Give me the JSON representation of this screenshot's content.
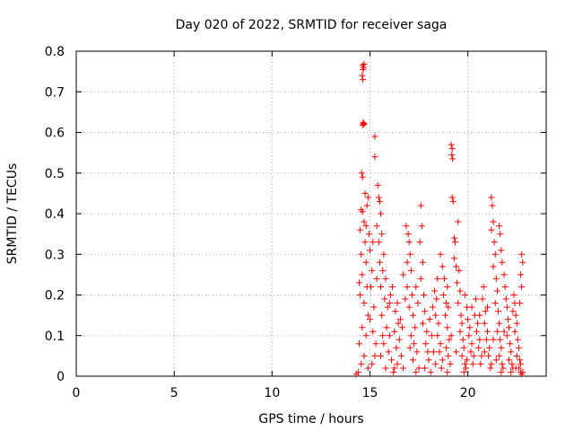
{
  "chart_data": {
    "type": "scatter",
    "title": "Day 020 of 2022, SRMTID for receiver saga",
    "xlabel": "GPS time / hours",
    "ylabel": "SRMTID / TECUs",
    "xlim": [
      0,
      24
    ],
    "ylim": [
      0,
      0.8
    ],
    "grid": true,
    "marker": "+",
    "marker_color": "#ff0000",
    "x_ticks": [
      0,
      5,
      10,
      15,
      20
    ],
    "x_tick_labels": [
      "0",
      "5",
      "10",
      "15",
      "20"
    ],
    "y_ticks": [
      0,
      0.1,
      0.2,
      0.3,
      0.4,
      0.5,
      0.6,
      0.7,
      0.8
    ],
    "y_tick_labels": [
      "0",
      "0.1",
      "0.2",
      "0.3",
      "0.4",
      "0.5",
      "0.6",
      "0.7",
      "0.8"
    ],
    "series": [
      {
        "name": "SRMTID",
        "points": [
          [
            14.62,
            0.765
          ],
          [
            14.65,
            0.755
          ],
          [
            14.6,
            0.74
          ],
          [
            14.64,
            0.73
          ],
          [
            14.68,
            0.76
          ],
          [
            14.7,
            0.768
          ],
          [
            14.65,
            0.625
          ],
          [
            14.7,
            0.62
          ],
          [
            14.62,
            0.618
          ],
          [
            14.68,
            0.622
          ],
          [
            15.25,
            0.59
          ],
          [
            15.25,
            0.54
          ],
          [
            19.15,
            0.57
          ],
          [
            19.2,
            0.56
          ],
          [
            19.18,
            0.545
          ],
          [
            19.22,
            0.535
          ],
          [
            14.58,
            0.5
          ],
          [
            14.62,
            0.49
          ],
          [
            14.55,
            0.41
          ],
          [
            14.62,
            0.405
          ],
          [
            14.7,
            0.38
          ],
          [
            14.8,
            0.37
          ],
          [
            14.5,
            0.36
          ],
          [
            14.75,
            0.33
          ],
          [
            14.55,
            0.3
          ],
          [
            14.8,
            0.28
          ],
          [
            14.6,
            0.25
          ],
          [
            14.45,
            0.23
          ],
          [
            14.85,
            0.22
          ],
          [
            14.5,
            0.2
          ],
          [
            14.7,
            0.18
          ],
          [
            14.9,
            0.15
          ],
          [
            14.6,
            0.12
          ],
          [
            14.8,
            0.1
          ],
          [
            14.45,
            0.08
          ],
          [
            14.7,
            0.05
          ],
          [
            14.55,
            0.03
          ],
          [
            14.9,
            0.02
          ],
          [
            14.4,
            0.01
          ],
          [
            14.3,
            0.005
          ],
          [
            14.75,
            0.45
          ],
          [
            14.9,
            0.44
          ],
          [
            14.85,
            0.42
          ],
          [
            15.0,
            0.31
          ],
          [
            15.1,
            0.26
          ],
          [
            15.05,
            0.22
          ],
          [
            15.2,
            0.17
          ],
          [
            15.0,
            0.14
          ],
          [
            15.15,
            0.11
          ],
          [
            15.3,
            0.08
          ],
          [
            15.25,
            0.05
          ],
          [
            15.1,
            0.03
          ],
          [
            15.4,
            0.47
          ],
          [
            15.45,
            0.44
          ],
          [
            15.5,
            0.43
          ],
          [
            15.55,
            0.4
          ],
          [
            15.35,
            0.37
          ],
          [
            15.6,
            0.35
          ],
          [
            15.45,
            0.33
          ],
          [
            15.7,
            0.3
          ],
          [
            15.5,
            0.28
          ],
          [
            15.65,
            0.26
          ],
          [
            15.8,
            0.24
          ],
          [
            15.55,
            0.22
          ],
          [
            15.75,
            0.19
          ],
          [
            15.9,
            0.17
          ],
          [
            15.6,
            0.15
          ],
          [
            15.85,
            0.12
          ],
          [
            16.0,
            0.1
          ],
          [
            15.7,
            0.08
          ],
          [
            15.95,
            0.06
          ],
          [
            16.1,
            0.04
          ],
          [
            15.8,
            0.02
          ],
          [
            16.2,
            0.01
          ],
          [
            16.0,
            0.18
          ],
          [
            16.15,
            0.22
          ],
          [
            16.3,
            0.16
          ],
          [
            16.45,
            0.13
          ],
          [
            16.25,
            0.11
          ],
          [
            16.5,
            0.09
          ],
          [
            16.35,
            0.07
          ],
          [
            16.6,
            0.05
          ],
          [
            16.4,
            0.03
          ],
          [
            16.7,
            0.02
          ],
          [
            16.55,
            0.14
          ],
          [
            16.8,
            0.19
          ],
          [
            16.7,
            0.25
          ],
          [
            16.9,
            0.22
          ],
          [
            16.85,
            0.37
          ],
          [
            16.95,
            0.35
          ],
          [
            17.0,
            0.33
          ],
          [
            17.05,
            0.3
          ],
          [
            16.9,
            0.28
          ],
          [
            17.1,
            0.26
          ],
          [
            17.15,
            0.2
          ],
          [
            17.0,
            0.17
          ],
          [
            17.2,
            0.15
          ],
          [
            17.3,
            0.12
          ],
          [
            17.1,
            0.1
          ],
          [
            17.25,
            0.08
          ],
          [
            17.4,
            0.06
          ],
          [
            17.2,
            0.04
          ],
          [
            17.5,
            0.02
          ],
          [
            17.35,
            0.01
          ],
          [
            17.6,
            0.42
          ],
          [
            17.65,
            0.37
          ],
          [
            17.55,
            0.33
          ],
          [
            17.7,
            0.28
          ],
          [
            17.6,
            0.24
          ],
          [
            17.75,
            0.2
          ],
          [
            17.8,
            0.16
          ],
          [
            17.7,
            0.13
          ],
          [
            17.9,
            0.11
          ],
          [
            17.85,
            0.08
          ],
          [
            17.95,
            0.06
          ],
          [
            18.0,
            0.04
          ],
          [
            17.8,
            0.02
          ],
          [
            18.1,
            0.01
          ],
          [
            18.05,
            0.14
          ],
          [
            18.2,
            0.17
          ],
          [
            18.15,
            0.1
          ],
          [
            18.3,
            0.21
          ],
          [
            18.4,
            0.19
          ],
          [
            18.35,
            0.15
          ],
          [
            18.5,
            0.13
          ],
          [
            18.45,
            0.1
          ],
          [
            18.6,
            0.08
          ],
          [
            18.55,
            0.06
          ],
          [
            18.7,
            0.04
          ],
          [
            18.65,
            0.02
          ],
          [
            18.8,
            0.24
          ],
          [
            18.75,
            0.2
          ],
          [
            18.9,
            0.18
          ],
          [
            18.85,
            0.15
          ],
          [
            19.0,
            0.17
          ],
          [
            18.95,
            0.12
          ],
          [
            19.05,
            0.09
          ],
          [
            18.9,
            0.07
          ],
          [
            19.0,
            0.05
          ],
          [
            19.1,
            0.03
          ],
          [
            18.95,
            0.01
          ],
          [
            18.6,
            0.3
          ],
          [
            18.7,
            0.27
          ],
          [
            19.2,
            0.44
          ],
          [
            19.25,
            0.43
          ],
          [
            19.3,
            0.34
          ],
          [
            19.35,
            0.33
          ],
          [
            19.3,
            0.29
          ],
          [
            19.4,
            0.27
          ],
          [
            19.45,
            0.23
          ],
          [
            19.5,
            0.38
          ],
          [
            19.55,
            0.26
          ],
          [
            19.6,
            0.21
          ],
          [
            19.5,
            0.18
          ],
          [
            19.65,
            0.15
          ],
          [
            19.7,
            0.13
          ],
          [
            19.6,
            0.11
          ],
          [
            19.75,
            0.09
          ],
          [
            19.8,
            0.07
          ],
          [
            19.7,
            0.05
          ],
          [
            19.85,
            0.03
          ],
          [
            19.9,
            0.02
          ],
          [
            19.8,
            0.01
          ],
          [
            19.95,
            0.17
          ],
          [
            20.0,
            0.14
          ],
          [
            20.1,
            0.12
          ],
          [
            20.05,
            0.1
          ],
          [
            20.2,
            0.08
          ],
          [
            20.15,
            0.06
          ],
          [
            20.3,
            0.05
          ],
          [
            20.25,
            0.03
          ],
          [
            20.4,
            0.19
          ],
          [
            20.35,
            0.15
          ],
          [
            20.5,
            0.13
          ],
          [
            20.45,
            0.11
          ],
          [
            20.6,
            0.09
          ],
          [
            20.55,
            0.07
          ],
          [
            20.7,
            0.05
          ],
          [
            20.65,
            0.03
          ],
          [
            20.8,
            0.22
          ],
          [
            20.75,
            0.19
          ],
          [
            20.9,
            0.16
          ],
          [
            20.85,
            0.13
          ],
          [
            21.0,
            0.11
          ],
          [
            20.95,
            0.09
          ],
          [
            21.1,
            0.07
          ],
          [
            21.05,
            0.05
          ],
          [
            21.2,
            0.03
          ],
          [
            21.15,
            0.02
          ],
          [
            21.2,
            0.44
          ],
          [
            21.25,
            0.42
          ],
          [
            21.3,
            0.38
          ],
          [
            21.2,
            0.36
          ],
          [
            21.35,
            0.33
          ],
          [
            21.4,
            0.3
          ],
          [
            21.3,
            0.27
          ],
          [
            21.45,
            0.24
          ],
          [
            21.5,
            0.21
          ],
          [
            21.4,
            0.18
          ],
          [
            21.55,
            0.16
          ],
          [
            21.6,
            0.13
          ],
          [
            21.5,
            0.11
          ],
          [
            21.65,
            0.09
          ],
          [
            21.7,
            0.07
          ],
          [
            21.6,
            0.05
          ],
          [
            21.75,
            0.03
          ],
          [
            21.8,
            0.02
          ],
          [
            21.7,
            0.01
          ],
          [
            21.6,
            0.37
          ],
          [
            21.65,
            0.35
          ],
          [
            21.7,
            0.31
          ],
          [
            21.75,
            0.28
          ],
          [
            21.85,
            0.25
          ],
          [
            21.9,
            0.22
          ],
          [
            21.95,
            0.19
          ],
          [
            22.0,
            0.17
          ],
          [
            22.05,
            0.14
          ],
          [
            22.1,
            0.12
          ],
          [
            22.0,
            0.1
          ],
          [
            22.15,
            0.08
          ],
          [
            22.2,
            0.06
          ],
          [
            22.1,
            0.04
          ],
          [
            22.25,
            0.03
          ],
          [
            22.3,
            0.02
          ],
          [
            22.2,
            0.01
          ],
          [
            22.35,
            0.2
          ],
          [
            22.4,
            0.18
          ],
          [
            22.45,
            0.15
          ],
          [
            22.5,
            0.13
          ],
          [
            22.4,
            0.11
          ],
          [
            22.55,
            0.09
          ],
          [
            22.6,
            0.07
          ],
          [
            22.5,
            0.05
          ],
          [
            22.65,
            0.04
          ],
          [
            22.7,
            0.03
          ],
          [
            22.6,
            0.02
          ],
          [
            22.7,
            0.01
          ],
          [
            22.75,
            0.3
          ],
          [
            22.8,
            0.28
          ],
          [
            22.7,
            0.25
          ],
          [
            22.75,
            0.22
          ],
          [
            22.8,
            0.01
          ],
          [
            22.75,
            0.005
          ],
          [
            14.95,
            0.35
          ],
          [
            15.15,
            0.33
          ],
          [
            15.35,
            0.24
          ],
          [
            15.65,
            0.1
          ],
          [
            16.05,
            0.2
          ],
          [
            16.4,
            0.18
          ],
          [
            16.65,
            0.12
          ],
          [
            17.45,
            0.18
          ],
          [
            17.35,
            0.22
          ],
          [
            18.25,
            0.06
          ],
          [
            18.45,
            0.24
          ],
          [
            18.95,
            0.22
          ],
          [
            19.4,
            0.06
          ],
          [
            19.85,
            0.2
          ],
          [
            20.2,
            0.17
          ],
          [
            20.6,
            0.15
          ],
          [
            21.0,
            0.17
          ],
          [
            21.3,
            0.09
          ],
          [
            21.85,
            0.11
          ],
          [
            22.3,
            0.16
          ],
          [
            22.65,
            0.18
          ],
          [
            15.55,
            0.05
          ],
          [
            16.25,
            0.02
          ],
          [
            17.05,
            0.07
          ],
          [
            18.35,
            0.03
          ],
          [
            19.15,
            0.1
          ],
          [
            19.95,
            0.04
          ],
          [
            20.85,
            0.06
          ],
          [
            21.45,
            0.04
          ],
          [
            22.45,
            0.02
          ]
        ]
      }
    ]
  }
}
